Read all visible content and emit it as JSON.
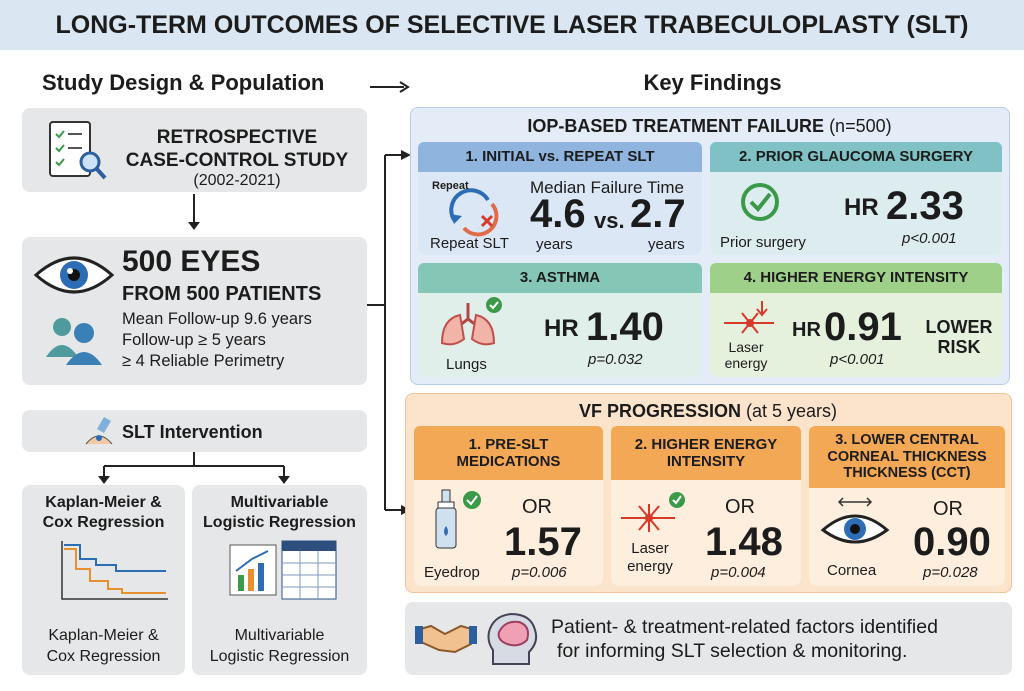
{
  "title": "LONG-TERM OUTCOMES OF SELECTIVE LASER TRABECULOPLASTY (SLT)",
  "left": {
    "heading": "Study Design & Population",
    "design": {
      "title_line1": "RETROSPECTIVE",
      "title_line2": "CASE-CONTROL STUDY",
      "years": "(2002-2021)"
    },
    "population": {
      "headline": "500 EYES",
      "subhead": "FROM 500 PATIENTS",
      "details": [
        "Mean Follow-up 9.6 years",
        "Follow-up ≥ 5 years",
        "≥ 4 Reliable Perimetry"
      ]
    },
    "intervention": "SLT Intervention",
    "methods": [
      {
        "title_line1": "Kaplan-Meier &",
        "title_line2": "Cox Regression",
        "caption_line1": "Kaplan-Meier &",
        "caption_line2": "Cox Regression"
      },
      {
        "title_line1": "Multivariable",
        "title_line2": "Logistic Regression",
        "caption_line1": "Multivariable",
        "caption_line2": "Logistic Regression"
      }
    ]
  },
  "right": {
    "heading": "Key Findings",
    "iop": {
      "title": "IOP-BASED TREATMENT FAILURE",
      "n": "(n=500)",
      "repeat": {
        "header": "1. INITIAL vs. REPEAT SLT",
        "icon_label": "Repeat",
        "caption": "Repeat SLT",
        "metric": "Median Failure Time",
        "value_a": "4.6",
        "versus": "vs.",
        "value_b": "2.7",
        "unit_a": "years",
        "unit_b": "years"
      },
      "panels": [
        {
          "header": "2. PRIOR GLAUCOMA SURGERY",
          "caption": "Prior surgery",
          "stat": "HR",
          "value": "2.33",
          "p": "p<0.001"
        },
        {
          "header": "3. ASTHMA",
          "caption": "Lungs",
          "stat": "HR",
          "value": "1.40",
          "p": "p=0.032"
        },
        {
          "header": "4. HIGHER ENERGY INTENSITY",
          "caption_line1": "Laser",
          "caption_line2": "energy",
          "stat": "HR",
          "value": "0.91",
          "p": "p<0.001",
          "note_line1": "LOWER",
          "note_line2": "RISK"
        }
      ]
    },
    "vf": {
      "title": "VF PROGRESSION",
      "timepoint": "(at 5 years)",
      "panels": [
        {
          "header_line1": "1. PRE-SLT",
          "header_line2": "MEDICATIONS",
          "caption": "Eyedrop",
          "stat": "OR",
          "value": "1.57",
          "p": "p=0.006"
        },
        {
          "header_line1": "2. HIGHER ENERGY",
          "header_line2": "INTENSITY",
          "caption_line1": "Laser",
          "caption_line2": "energy",
          "stat": "OR",
          "value": "1.48",
          "p": "p=0.004"
        },
        {
          "header_line1": "3. LOWER CENTRAL",
          "header_line2": "CORNEAL THICKNESS",
          "header_line3": "THICKNESS (CCT)",
          "caption": "Cornea",
          "stat": "OR",
          "value": "0.90",
          "p": "p=0.028"
        }
      ]
    },
    "conclusion_line1": "Patient- & treatment-related factors identified",
    "conclusion_line2": "for informing SLT selection & monitoring."
  }
}
